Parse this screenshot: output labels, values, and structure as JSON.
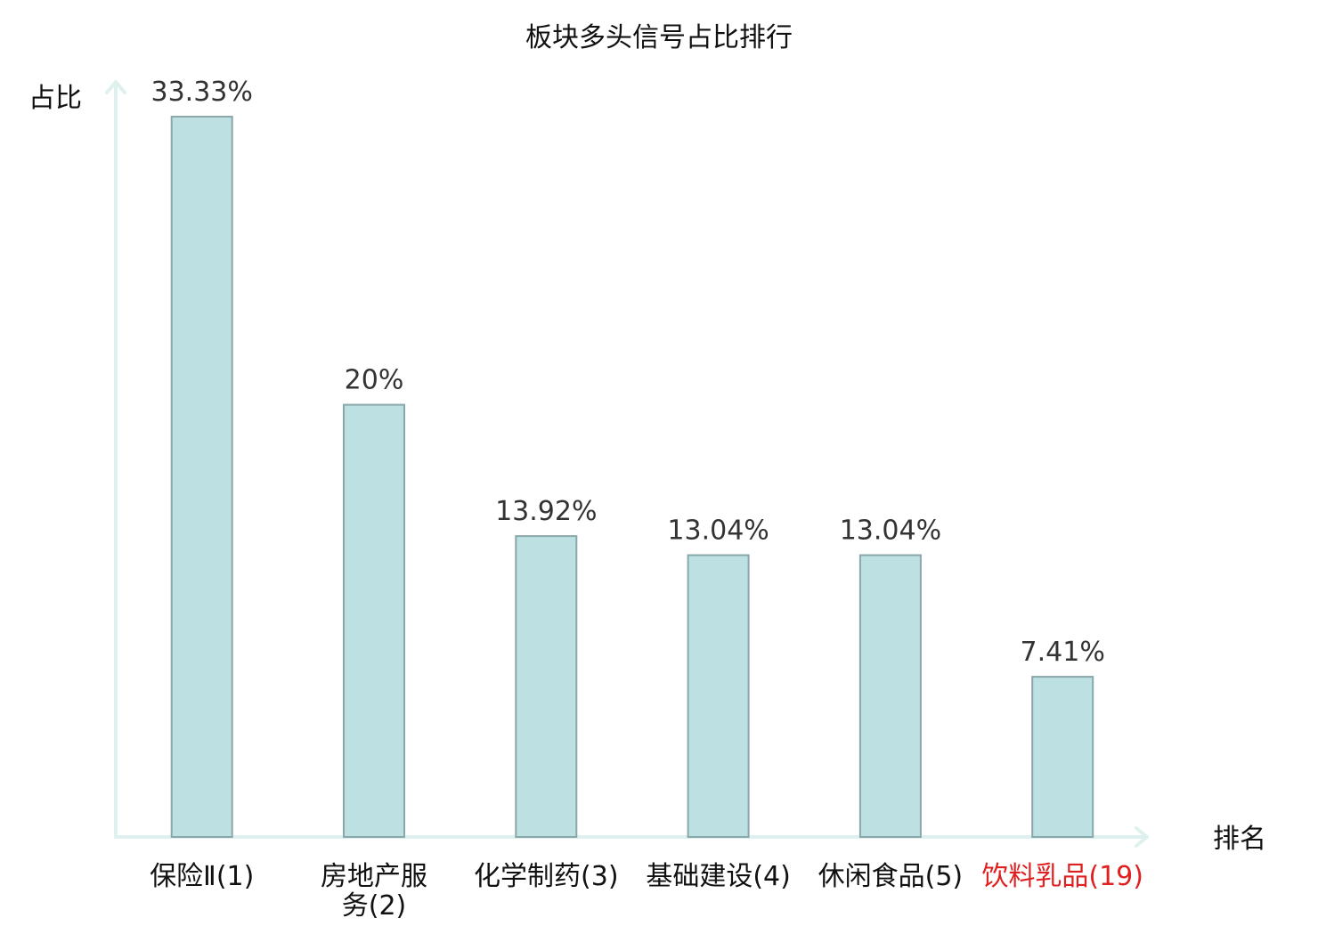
{
  "chart_data": {
    "type": "bar",
    "title": "板块多头信号占比排行",
    "xlabel": "排名",
    "ylabel": "占比",
    "value_suffix": "%",
    "ylim": [
      0,
      35
    ],
    "grid": false,
    "legend": "none",
    "bar_color": "#bde0e3",
    "bar_border_color": "#8aa7aa",
    "axis_color": "#dff1ee",
    "label_color": "#333333",
    "text_color": "#111111",
    "highlight_color": "#e02020",
    "categories": [
      {
        "name": "保险Ⅱ",
        "rank": "(1)",
        "lines": [
          "保险Ⅱ(1)"
        ],
        "highlight": false
      },
      {
        "name": "房地产服务",
        "rank": "(2)",
        "lines": [
          "房地产服",
          "务(2)"
        ],
        "highlight": false
      },
      {
        "name": "化学制药",
        "rank": "(3)",
        "lines": [
          "化学制药(3)"
        ],
        "highlight": false
      },
      {
        "name": "基础建设",
        "rank": "(4)",
        "lines": [
          "基础建设(4)"
        ],
        "highlight": false
      },
      {
        "name": "休闲食品",
        "rank": "(5)",
        "lines": [
          "休闲食品(5)"
        ],
        "highlight": false
      },
      {
        "name": "饮料乳品",
        "rank": "(19)",
        "lines": [
          "饮料乳品(19)"
        ],
        "highlight": true
      }
    ],
    "values": [
      33.33,
      20,
      13.92,
      13.04,
      13.04,
      7.41
    ],
    "value_labels": [
      "33.33%",
      "20%",
      "13.92%",
      "13.04%",
      "13.04%",
      "7.41%"
    ]
  }
}
